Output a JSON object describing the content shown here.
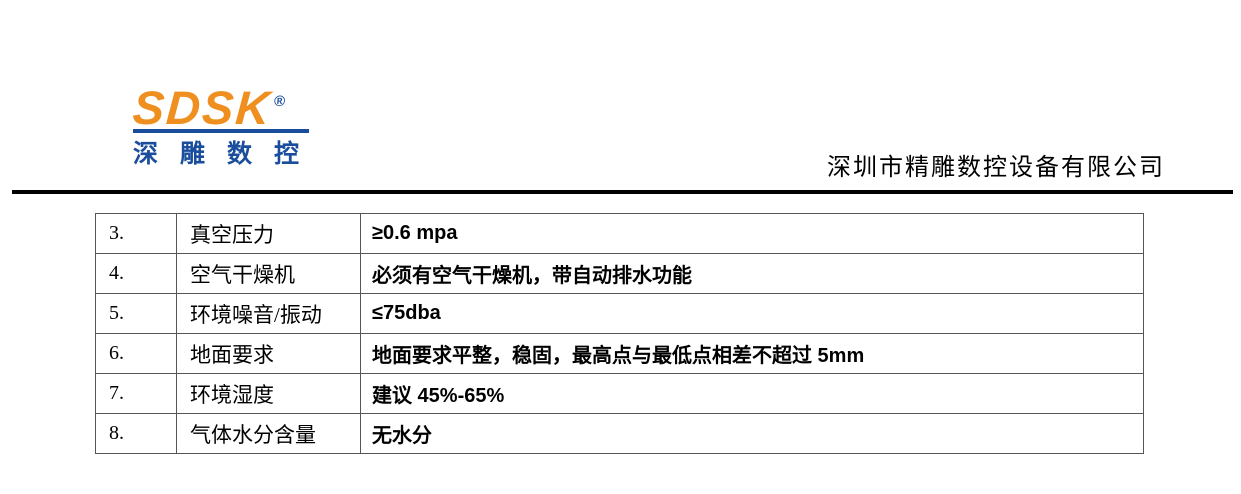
{
  "logo": {
    "brand": "SDSK",
    "registered_mark": "®",
    "subtitle": "深雕数控",
    "brand_color": "#EF8F1F",
    "accent_color": "#1A4E9D"
  },
  "header": {
    "company_name": "深圳市精雕数控设备有限公司"
  },
  "table": {
    "rows": [
      {
        "num": "3.",
        "label": "真空压力",
        "value": "≥0.6 mpa"
      },
      {
        "num": "4.",
        "label": "空气干燥机",
        "value": "必须有空气干燥机，带自动排水功能"
      },
      {
        "num": "5.",
        "label": "环境噪音/振动",
        "value": "≤75dba"
      },
      {
        "num": "6.",
        "label": "地面要求",
        "value": "地面要求平整，稳固，最高点与最低点相差不超过  5mm"
      },
      {
        "num": "7.",
        "label": "环境湿度",
        "value": "建议  45%-65%"
      },
      {
        "num": "8.",
        "label": "气体水分含量",
        "value": "无水分"
      }
    ]
  }
}
